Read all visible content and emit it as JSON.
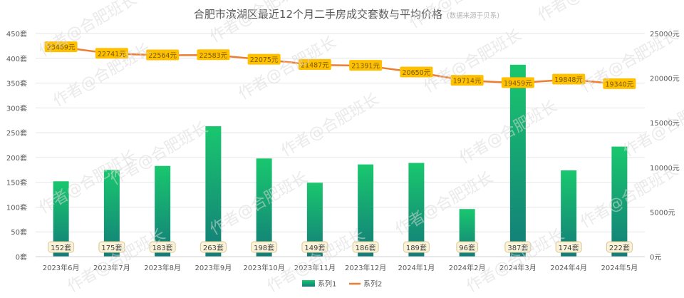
{
  "chart_data": {
    "type": "bar",
    "title": "合肥市滨湖区最近12个月二手房成交套数与平均价格",
    "subtitle": "(数据来源于贝系)",
    "categories": [
      "2023年6月",
      "2023年7月",
      "2023年8月",
      "2023年9月",
      "2023年10月",
      "2023年11月",
      "2023年12月",
      "2024年1月",
      "2024年2月",
      "2024年3月",
      "2024年4月",
      "2024年5月"
    ],
    "series": [
      {
        "name": "系列1",
        "type": "bar",
        "axis": "left",
        "values": [
          152,
          175,
          183,
          263,
          198,
          149,
          186,
          189,
          96,
          387,
          174,
          222
        ],
        "labels": [
          "152套",
          "175套",
          "183套",
          "263套",
          "198套",
          "149套",
          "186套",
          "189套",
          "96套",
          "387套",
          "174套",
          "222套"
        ],
        "color_top": "#19c76e",
        "color_bottom": "#137c79"
      },
      {
        "name": "系列2",
        "type": "line",
        "axis": "right",
        "values": [
          23469,
          22741,
          22564,
          22583,
          22075,
          21487,
          21391,
          20650,
          19714,
          19459,
          19848,
          19340
        ],
        "labels": [
          "23469元",
          "22741元",
          "22564元",
          "22583元",
          "22075元",
          "21487元",
          "21391元",
          "20650元",
          "19714元",
          "19459元",
          "19848元",
          "19340元"
        ],
        "color": "#ed7d31",
        "label_bg": "#ffc000"
      }
    ],
    "y_left": {
      "ylim": [
        0,
        450
      ],
      "ticks": [
        0,
        50,
        100,
        150,
        200,
        250,
        300,
        350,
        400,
        450
      ],
      "tick_labels": [
        "0套",
        "50套",
        "100套",
        "150套",
        "200套",
        "250套",
        "300套",
        "350套",
        "400套",
        "450套"
      ]
    },
    "y_right": {
      "ylim": [
        0,
        25000
      ],
      "ticks": [
        0,
        5000,
        10000,
        15000,
        20000,
        25000
      ],
      "tick_labels": [
        "0元",
        "5000元",
        "10000元",
        "15000元",
        "20000元",
        "25000元"
      ]
    },
    "grid": true,
    "legend": "bottom",
    "watermark": "作者@合肥班长"
  }
}
